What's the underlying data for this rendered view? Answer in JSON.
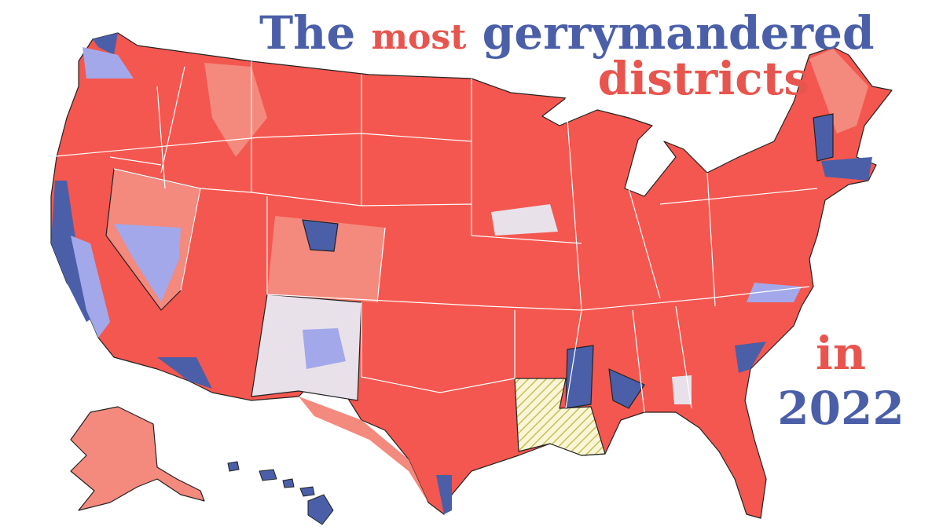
{
  "title": {
    "words": [
      "The",
      "most",
      "gerrymandered",
      "districts"
    ]
  },
  "year": {
    "prefix": "in",
    "value": "2022"
  }
}
